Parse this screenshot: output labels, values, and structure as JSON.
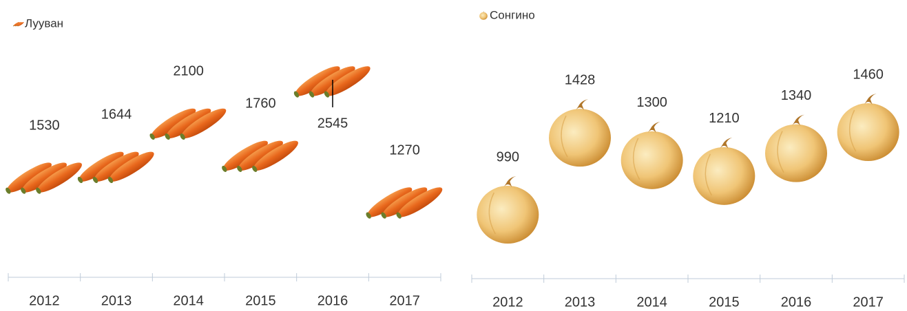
{
  "chart_data": [
    {
      "type": "line",
      "marker": "carrot",
      "categories": [
        "2012",
        "2013",
        "2014",
        "2015",
        "2016",
        "2017"
      ],
      "series": [
        {
          "name": "Лууван",
          "color": "#e8671c",
          "values": [
            1530,
            1644,
            2100,
            1760,
            2545,
            1270
          ]
        }
      ]
    },
    {
      "type": "line",
      "marker": "onion",
      "categories": [
        "2012",
        "2013",
        "2014",
        "2015",
        "2016",
        "2017"
      ],
      "series": [
        {
          "name": "Сонгино",
          "color": "#e0a84a",
          "values": [
            990,
            1428,
            1300,
            1210,
            1340,
            1460
          ]
        }
      ]
    }
  ]
}
